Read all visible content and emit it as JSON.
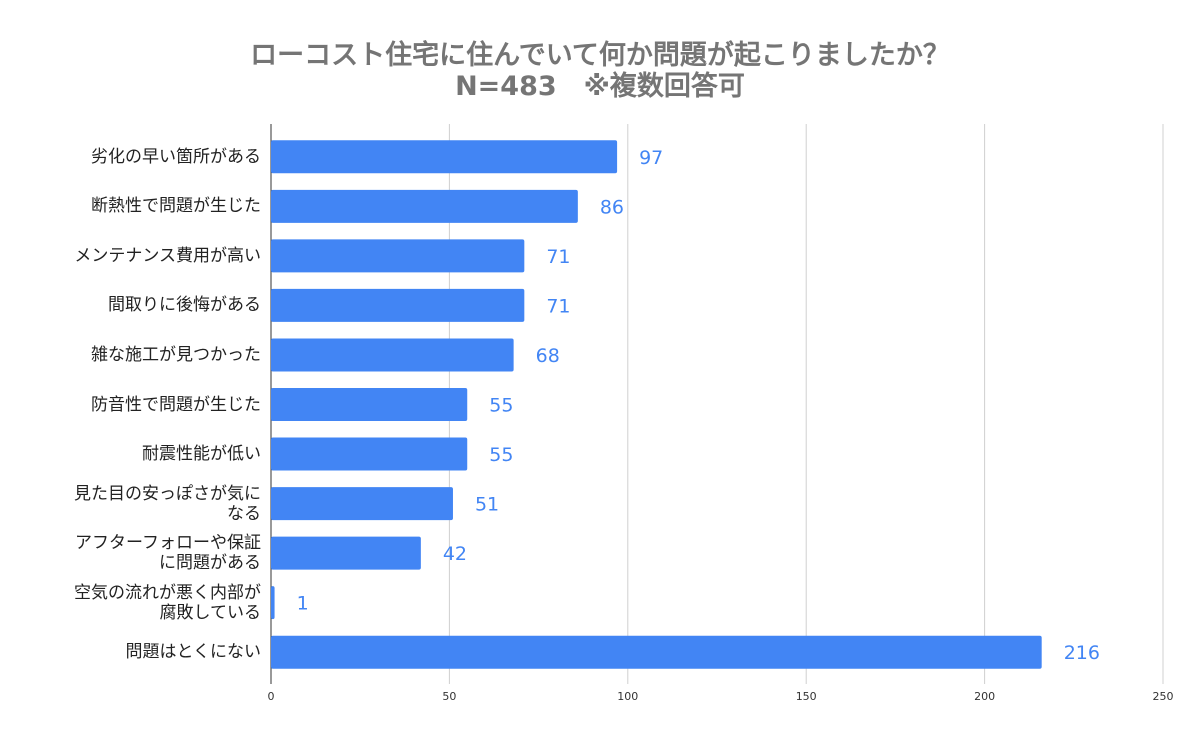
{
  "chart_data": {
    "type": "barh",
    "title": "ローコスト住宅に住んでいて何か問題が起こりましたか？",
    "subtitle": "N=483　※複数回答可",
    "categories": [
      "劣化の早い箇所がある",
      "断熱性で問題が生じた",
      "メンテナンス費用が高い",
      "間取りに後悔がある",
      "雑な施工が見つかった",
      "防音性で問題が生じた",
      "耐震性能が低い",
      "見た目の安っぽさが気になる",
      "アフターフォローや保証に問題がある",
      "空気の流れが悪く内部が腐敗している",
      "問題はとくにない"
    ],
    "values": [
      97,
      86,
      71,
      71,
      68,
      55,
      55,
      51,
      42,
      1,
      216
    ],
    "color": "#4285f4",
    "xlim": [
      0,
      250
    ],
    "xticks": [
      0,
      50,
      100,
      150,
      200,
      250
    ],
    "grid": true
  }
}
